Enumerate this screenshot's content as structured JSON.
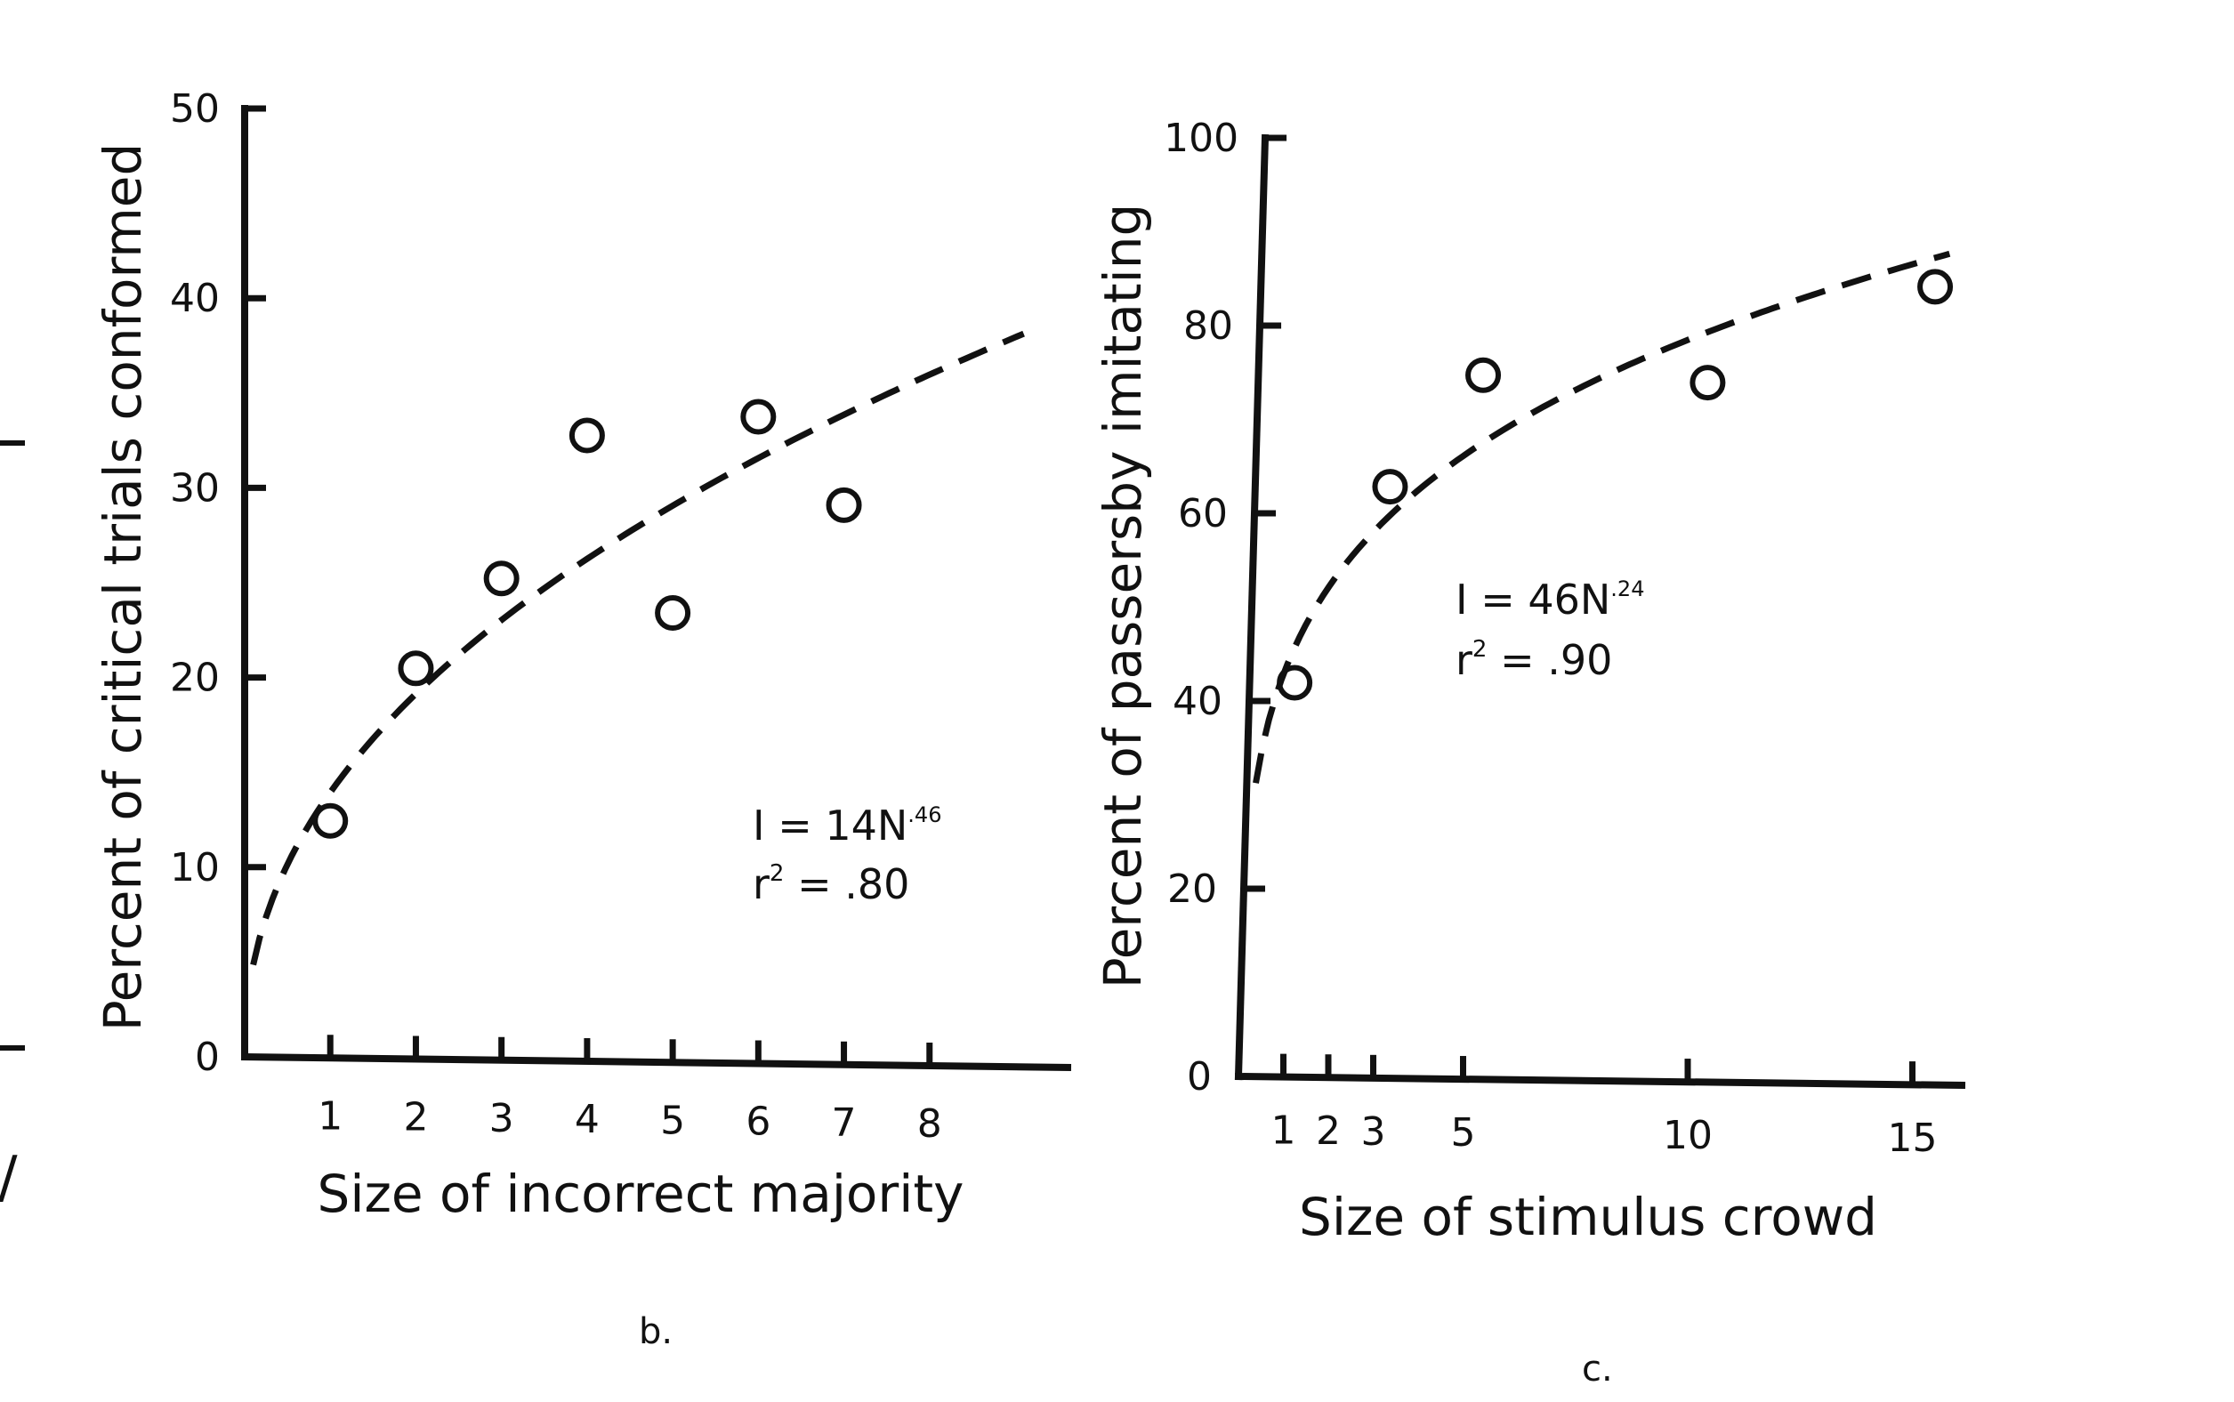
{
  "edge_marks": {
    "partial_char": "/"
  },
  "chart_data": [
    {
      "type": "scatter",
      "panel_label": "b.",
      "xlabel": "Size of incorrect majority",
      "ylabel": "Percent of critical trials conformed",
      "xlim": [
        0,
        9
      ],
      "ylim": [
        0,
        50
      ],
      "x_ticks": [
        1,
        2,
        3,
        4,
        5,
        6,
        7,
        8
      ],
      "y_ticks": [
        0,
        10,
        20,
        30,
        40,
        50
      ],
      "points": [
        {
          "x": 1,
          "y": 12.5
        },
        {
          "x": 2,
          "y": 20.6
        },
        {
          "x": 3,
          "y": 25.4
        },
        {
          "x": 4,
          "y": 33
        },
        {
          "x": 5,
          "y": 23.7
        },
        {
          "x": 6,
          "y": 34.1
        },
        {
          "x": 7,
          "y": 29.5
        }
      ],
      "fit": {
        "coef": 14,
        "exponent": 0.46,
        "x_start": 0.1,
        "x_end": 9.1
      },
      "annotation": {
        "line1_prefix": "I = 14N",
        "line1_exp": ".46",
        "line2_prefix": "r",
        "line2_sup": "2",
        "line2_suffix": " = .80"
      },
      "grid": false,
      "legend": "none"
    },
    {
      "type": "scatter",
      "panel_label": "c.",
      "xlabel": "Size of stimulus crowd",
      "ylabel": "Percent of passersby imitating",
      "xlim": [
        0,
        16
      ],
      "ylim": [
        0,
        100
      ],
      "x_ticks": [
        1,
        2,
        3,
        5,
        10,
        15
      ],
      "y_ticks": [
        0,
        20,
        40,
        60,
        80,
        100
      ],
      "points": [
        {
          "x": 1,
          "y": 42
        },
        {
          "x": 3,
          "y": 63
        },
        {
          "x": 5,
          "y": 75
        },
        {
          "x": 10,
          "y": 74.5
        },
        {
          "x": 15,
          "y": 85
        }
      ],
      "fit": {
        "coef": 46,
        "exponent": 0.24,
        "x_start": 0.2,
        "x_end": 15.3
      },
      "annotation": {
        "line1_prefix": "I = 46N",
        "line1_exp": ".24",
        "line2_prefix": "r",
        "line2_sup": "2",
        "line2_suffix": " = .90"
      },
      "grid": false,
      "legend": "none"
    }
  ]
}
